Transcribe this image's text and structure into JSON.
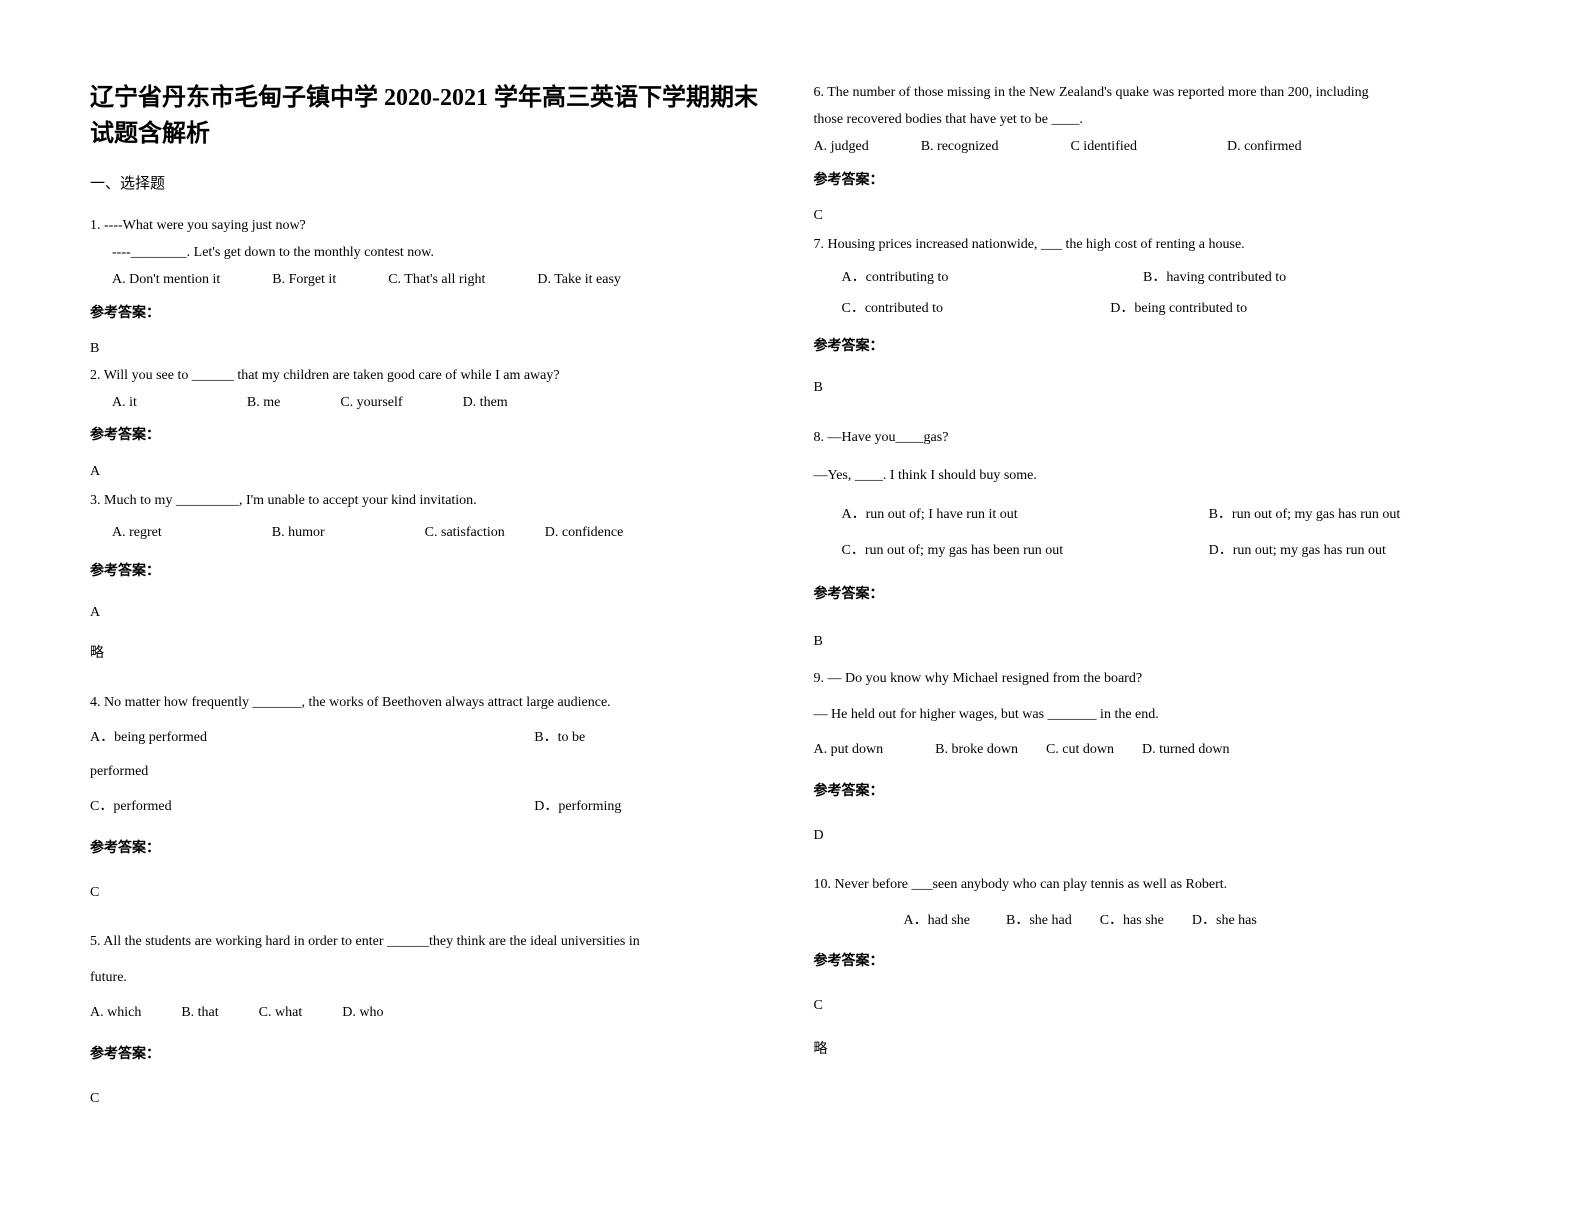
{
  "title": "辽宁省丹东市毛甸子镇中学 2020-2021 学年高三英语下学期期末试题含解析",
  "section1": "一、选择题",
  "ref_label": "参考答案：",
  "lue": "略",
  "q1": {
    "l1": "1. ----What were you saying just now?",
    "l2": "----________. Let's get down to the monthly contest now.",
    "a": "A. Don't mention it",
    "b": "B. Forget it",
    "c": "C. That's all right",
    "d": "D. Take it easy",
    "ans": "B"
  },
  "q2": {
    "stem": "2. Will you see to ______ that my children are taken good care of while I am away?",
    "a": "A. it",
    "b": "B. me",
    "c": "C. yourself",
    "d": "D. them",
    "ans": "A"
  },
  "q3": {
    "stem": "3. Much to my _________, I'm unable to accept your kind invitation.",
    "a": "A. regret",
    "b": "B. humor",
    "c": "C. satisfaction",
    "d": "D. confidence",
    "ans": "A"
  },
  "q4": {
    "stem": "4. No matter how frequently _______, the works of Beethoven always attract large audience.",
    "a": "A．being performed",
    "b": "B．to be",
    "b2": "performed",
    "c": "C．performed",
    "d": "D．performing",
    "ans": "C"
  },
  "q5": {
    "l1": "5. All the students are working hard in order to enter ______they think are the ideal universities in",
    "l2": "future.",
    "a": "A. which",
    "b": "B. that",
    "c": "C. what",
    "d": "D. who",
    "ans": "C"
  },
  "q6": {
    "l1": "6. The number of those missing in the New Zealand's quake was reported more than 200, including",
    "l2": "those recovered bodies that have yet to be ____.",
    "a": "A. judged",
    "b": "B. recognized",
    "c": "C identified",
    "d": "D. confirmed",
    "ans": "C"
  },
  "q7": {
    "stem": "7. Housing prices increased nationwide, ___ the high cost of renting a house.",
    "a": "A．contributing to",
    "b": "B．having contributed to",
    "c": "C．contributed to",
    "d": "D．being contributed to",
    "ans": "B"
  },
  "q8": {
    "l1": "8. —Have you____gas?",
    "l2": "—Yes, ____. I think I should buy some.",
    "a": "A．run out of; I have run it out",
    "b": "B．run out of; my gas has run out",
    "c": "C．run out of; my gas has been run out",
    "d": "D．run out; my gas has run out",
    "ans": "B"
  },
  "q9": {
    "l1": "9. — Do you know why Michael resigned from the board?",
    "l2": "— He held out for higher wages, but was _______ in the end.",
    "a": "A. put down",
    "b": "B. broke down",
    "c": "C. cut down",
    "d": "D. turned down",
    "ans": "D"
  },
  "q10": {
    "stem": "10. Never before ___seen anybody who can play tennis as well as Robert.",
    "a": "A．had she",
    "b": "B．she had",
    "c": "C．has she",
    "d": "D．she has",
    "ans": "C"
  }
}
